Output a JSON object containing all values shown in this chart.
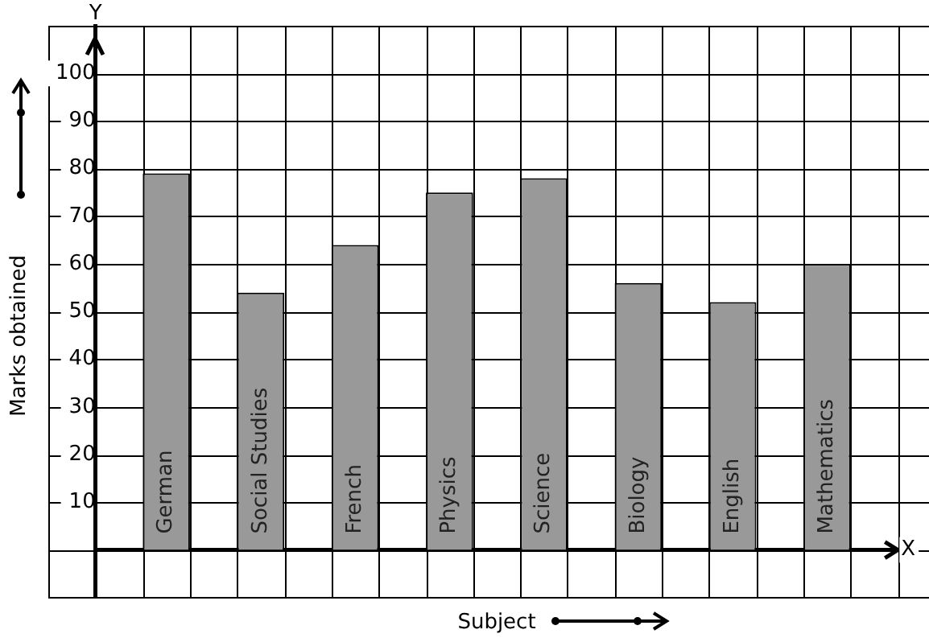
{
  "chart_data": {
    "type": "bar",
    "xlabel": "Subject",
    "ylabel": "Marks obtained",
    "categories": [
      "German",
      "Social Studies",
      "French",
      "Physics",
      "Science",
      "Biology",
      "English",
      "Mathematics"
    ],
    "values": [
      79,
      54,
      64,
      75,
      78,
      56,
      52,
      60
    ],
    "color": "#999999",
    "ylim": [
      -10,
      110
    ],
    "yticks": [
      {
        "value": 0,
        "label": null
      },
      10,
      20,
      30,
      40,
      50,
      60,
      70,
      80,
      90,
      100
    ],
    "annotations": [
      "Y",
      "X"
    ],
    "grid": true,
    "legend": false
  }
}
